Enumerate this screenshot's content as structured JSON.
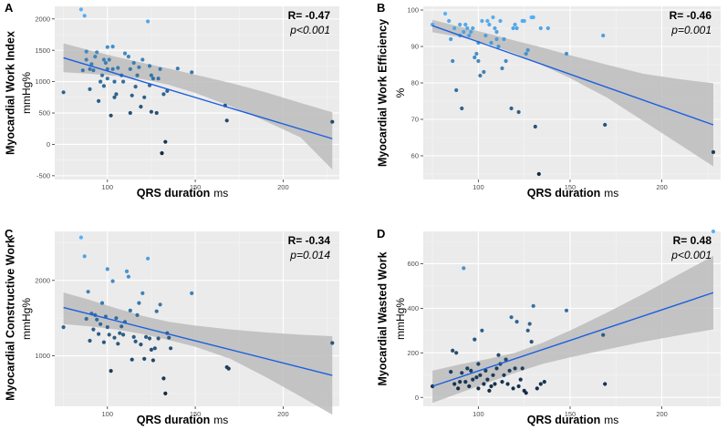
{
  "colors": {
    "panel_bg": "#ebebeb",
    "grid_major": "#ffffff",
    "grid_minor": "#f5f5f5",
    "ci_band": "#bcbcbc",
    "fit_line": "#1a5fe0",
    "point_low": "#132b43",
    "point_high": "#56b1f7"
  },
  "chart_data": [
    {
      "type": "scatter",
      "panel": "A",
      "ylabel": "Myocardial Work Index",
      "yunit": "mmHg%",
      "xlabel": "QRS duration",
      "xunit": "ms",
      "r_text": "R= -0.47",
      "p_text": "p<0.001",
      "xlim": [
        70,
        232
      ],
      "ylim": [
        -560,
        2200
      ],
      "xticks": [
        100,
        150,
        200
      ],
      "yticks": [
        -500,
        0,
        500,
        1000,
        1500,
        2000
      ],
      "xtick_labels": [
        "100",
        "150",
        "200"
      ],
      "ytick_labels": [
        "-500",
        "0",
        "500",
        "1000",
        "1500",
        "2000"
      ],
      "fit": {
        "x": [
          75,
          228
        ],
        "y": [
          1380,
          90
        ]
      },
      "ci_upper": [
        [
          75,
          1610
        ],
        [
          90,
          1500
        ],
        [
          105,
          1395
        ],
        [
          120,
          1300
        ],
        [
          135,
          1210
        ],
        [
          150,
          1110
        ],
        [
          170,
          980
        ],
        [
          190,
          830
        ],
        [
          210,
          660
        ],
        [
          228,
          510
        ]
      ],
      "ci_lower": [
        [
          75,
          1150
        ],
        [
          90,
          1125
        ],
        [
          105,
          1090
        ],
        [
          120,
          1040
        ],
        [
          135,
          950
        ],
        [
          150,
          820
        ],
        [
          170,
          610
        ],
        [
          190,
          370
        ],
        [
          210,
          110
        ],
        [
          228,
          -400
        ]
      ],
      "points": [
        [
          75,
          830
        ],
        [
          85,
          2150
        ],
        [
          87,
          2050
        ],
        [
          86,
          1180
        ],
        [
          88,
          1350
        ],
        [
          88,
          1480
        ],
        [
          90,
          1200
        ],
        [
          90,
          880
        ],
        [
          91,
          1280
        ],
        [
          92,
          1180
        ],
        [
          93,
          1400
        ],
        [
          94,
          1470
        ],
        [
          95,
          690
        ],
        [
          96,
          1000
        ],
        [
          97,
          1100
        ],
        [
          98,
          1350
        ],
        [
          98,
          930
        ],
        [
          99,
          1300
        ],
        [
          100,
          1550
        ],
        [
          100,
          1200
        ],
        [
          100,
          1050
        ],
        [
          101,
          1350
        ],
        [
          102,
          460
        ],
        [
          103,
          1560
        ],
        [
          103,
          1200
        ],
        [
          104,
          1000
        ],
        [
          104,
          750
        ],
        [
          105,
          800
        ],
        [
          106,
          1220
        ],
        [
          108,
          1100
        ],
        [
          109,
          1000
        ],
        [
          110,
          1450
        ],
        [
          112,
          1400
        ],
        [
          113,
          1200
        ],
        [
          113,
          500
        ],
        [
          114,
          780
        ],
        [
          115,
          1300
        ],
        [
          116,
          920
        ],
        [
          117,
          1100
        ],
        [
          118,
          1230
        ],
        [
          119,
          600
        ],
        [
          120,
          1350
        ],
        [
          121,
          750
        ],
        [
          123,
          1960
        ],
        [
          124,
          1250
        ],
        [
          124,
          940
        ],
        [
          125,
          1100
        ],
        [
          125,
          520
        ],
        [
          126,
          1050
        ],
        [
          128,
          500
        ],
        [
          129,
          1050
        ],
        [
          130,
          1200
        ],
        [
          131,
          -140
        ],
        [
          132,
          800
        ],
        [
          133,
          40
        ],
        [
          134,
          850
        ],
        [
          140,
          1210
        ],
        [
          148,
          1150
        ],
        [
          167,
          620
        ],
        [
          168,
          380
        ],
        [
          228,
          360
        ]
      ]
    },
    {
      "type": "scatter",
      "panel": "B",
      "ylabel": "Myocardial Work Efficiency",
      "yunit": "%",
      "xlabel": "QRS duration",
      "xunit": "ms",
      "r_text": "R= -0.46",
      "p_text": "p=0.001",
      "xlim": [
        70,
        232
      ],
      "ylim": [
        53.5,
        101
      ],
      "xticks": [
        100,
        150,
        200
      ],
      "yticks": [
        60,
        70,
        80,
        90,
        100
      ],
      "xtick_labels": [
        "100",
        "150",
        "200"
      ],
      "ytick_labels": [
        "60",
        "70",
        "80",
        "90",
        "100"
      ],
      "fit": {
        "x": [
          75,
          228
        ],
        "y": [
          95.7,
          68.5
        ]
      },
      "ci_upper": [
        [
          75,
          97.3
        ],
        [
          90,
          95.4
        ],
        [
          105,
          93.6
        ],
        [
          120,
          91.6
        ],
        [
          135,
          89.7
        ],
        [
          150,
          87.6
        ],
        [
          170,
          85.0
        ],
        [
          190,
          82.5
        ],
        [
          210,
          81.0
        ],
        [
          228,
          79.9
        ]
      ],
      "ci_lower": [
        [
          75,
          93.9
        ],
        [
          90,
          92.6
        ],
        [
          105,
          90.7
        ],
        [
          120,
          88.1
        ],
        [
          135,
          84.8
        ],
        [
          150,
          81.3
        ],
        [
          170,
          76.0
        ],
        [
          190,
          69.5
        ],
        [
          210,
          63.0
        ],
        [
          228,
          57.1
        ]
      ],
      "points": [
        [
          75,
          96
        ],
        [
          82,
          99
        ],
        [
          84,
          97
        ],
        [
          85,
          92
        ],
        [
          86,
          86
        ],
        [
          87,
          95
        ],
        [
          88,
          78
        ],
        [
          90,
          96
        ],
        [
          90,
          93
        ],
        [
          91,
          73
        ],
        [
          92,
          94
        ],
        [
          93,
          96
        ],
        [
          94,
          95
        ],
        [
          95,
          93
        ],
        [
          96,
          94
        ],
        [
          97,
          95
        ],
        [
          98,
          87
        ],
        [
          99,
          88
        ],
        [
          100,
          91
        ],
        [
          100,
          86
        ],
        [
          101,
          82
        ],
        [
          102,
          97
        ],
        [
          103,
          83
        ],
        [
          104,
          93
        ],
        [
          105,
          97
        ],
        [
          106,
          96
        ],
        [
          107,
          91
        ],
        [
          108,
          98
        ],
        [
          109,
          95
        ],
        [
          110,
          92
        ],
        [
          110,
          94
        ],
        [
          111,
          90
        ],
        [
          112,
          97
        ],
        [
          113,
          84
        ],
        [
          114,
          92
        ],
        [
          115,
          86
        ],
        [
          118,
          73
        ],
        [
          119,
          95
        ],
        [
          120,
          96
        ],
        [
          121,
          95
        ],
        [
          122,
          72
        ],
        [
          124,
          97
        ],
        [
          125,
          97
        ],
        [
          126,
          88
        ],
        [
          127,
          89
        ],
        [
          129,
          98
        ],
        [
          130,
          98
        ],
        [
          131,
          68
        ],
        [
          133,
          55
        ],
        [
          134,
          95
        ],
        [
          138,
          95
        ],
        [
          148,
          88
        ],
        [
          168,
          93
        ],
        [
          169,
          68.5
        ],
        [
          228,
          61
        ]
      ]
    },
    {
      "type": "scatter",
      "panel": "C",
      "ylabel": "Myocardial Constructive Work",
      "yunit": "mmHg%",
      "xlabel": "QRS duration",
      "xunit": "ms",
      "r_text": "R= -0.34",
      "p_text": "p=0.014",
      "xlim": [
        70,
        232
      ],
      "ylim": [
        330,
        2650
      ],
      "xticks": [
        100,
        150,
        200
      ],
      "yticks": [
        1000,
        2000
      ],
      "xtick_labels": [
        "100",
        "150",
        "200"
      ],
      "ytick_labels": [
        "1000",
        "2000"
      ],
      "fit": {
        "x": [
          75,
          228
        ],
        "y": [
          1640,
          740
        ]
      },
      "ci_upper": [
        [
          75,
          1840
        ],
        [
          90,
          1740
        ],
        [
          105,
          1630
        ],
        [
          120,
          1530
        ],
        [
          135,
          1450
        ],
        [
          150,
          1400
        ],
        [
          170,
          1350
        ],
        [
          190,
          1310
        ],
        [
          210,
          1280
        ],
        [
          228,
          1260
        ]
      ],
      "ci_lower": [
        [
          75,
          1420
        ],
        [
          90,
          1390
        ],
        [
          105,
          1350
        ],
        [
          120,
          1290
        ],
        [
          135,
          1210
        ],
        [
          150,
          1120
        ],
        [
          170,
          960
        ],
        [
          190,
          720
        ],
        [
          210,
          460
        ],
        [
          228,
          220
        ]
      ],
      "points": [
        [
          75,
          1380
        ],
        [
          85,
          2570
        ],
        [
          87,
          2320
        ],
        [
          88,
          1490
        ],
        [
          89,
          1850
        ],
        [
          90,
          1200
        ],
        [
          91,
          1560
        ],
        [
          92,
          1350
        ],
        [
          93,
          1540
        ],
        [
          94,
          1480
        ],
        [
          95,
          1290
        ],
        [
          96,
          1420
        ],
        [
          97,
          1700
        ],
        [
          98,
          1180
        ],
        [
          99,
          1520
        ],
        [
          100,
          2150
        ],
        [
          100,
          1380
        ],
        [
          101,
          1280
        ],
        [
          102,
          800
        ],
        [
          103,
          1990
        ],
        [
          104,
          1240
        ],
        [
          105,
          1500
        ],
        [
          106,
          1160
        ],
        [
          107,
          1300
        ],
        [
          108,
          1390
        ],
        [
          109,
          1280
        ],
        [
          110,
          1450
        ],
        [
          111,
          2120
        ],
        [
          112,
          2050
        ],
        [
          113,
          1600
        ],
        [
          114,
          950
        ],
        [
          115,
          1250
        ],
        [
          116,
          1190
        ],
        [
          117,
          1540
        ],
        [
          118,
          1700
        ],
        [
          119,
          1150
        ],
        [
          120,
          1830
        ],
        [
          121,
          960
        ],
        [
          122,
          1250
        ],
        [
          123,
          2290
        ],
        [
          124,
          1230
        ],
        [
          125,
          1080
        ],
        [
          126,
          940
        ],
        [
          127,
          1100
        ],
        [
          128,
          1590
        ],
        [
          129,
          1230
        ],
        [
          130,
          1680
        ],
        [
          132,
          700
        ],
        [
          133,
          500
        ],
        [
          134,
          1300
        ],
        [
          135,
          1240
        ],
        [
          136,
          1100
        ],
        [
          148,
          1830
        ],
        [
          168,
          850
        ],
        [
          169,
          830
        ],
        [
          228,
          1170
        ]
      ]
    },
    {
      "type": "scatter",
      "panel": "D",
      "ylabel": "Myocardial Wasted Work",
      "yunit": "mmHg%",
      "xlabel": "QRS duration",
      "xunit": "ms",
      "r_text": "R= 0.48",
      "p_text": "p<0.001",
      "xlim": [
        70,
        232
      ],
      "ylim": [
        -40,
        745
      ],
      "xticks": [
        100,
        150,
        200
      ],
      "yticks": [
        0,
        200,
        400,
        600
      ],
      "xtick_labels": [
        "100",
        "150",
        "200"
      ],
      "ytick_labels": [
        "0",
        "200",
        "400",
        "600"
      ],
      "fit": {
        "x": [
          75,
          228
        ],
        "y": [
          50,
          470
        ]
      },
      "ci_upper": [
        [
          75,
          120
        ],
        [
          90,
          148
        ],
        [
          105,
          172
        ],
        [
          120,
          200
        ],
        [
          135,
          245
        ],
        [
          150,
          300
        ],
        [
          170,
          380
        ],
        [
          190,
          465
        ],
        [
          210,
          555
        ],
        [
          228,
          635
        ]
      ],
      "ci_lower": [
        [
          75,
          -25
        ],
        [
          90,
          20
        ],
        [
          105,
          65
        ],
        [
          120,
          110
        ],
        [
          135,
          150
        ],
        [
          150,
          180
        ],
        [
          170,
          215
        ],
        [
          190,
          250
        ],
        [
          210,
          280
        ],
        [
          228,
          305
        ]
      ],
      "points": [
        [
          75,
          50
        ],
        [
          85,
          115
        ],
        [
          86,
          210
        ],
        [
          87,
          60
        ],
        [
          88,
          200
        ],
        [
          89,
          40
        ],
        [
          90,
          70
        ],
        [
          91,
          110
        ],
        [
          92,
          580
        ],
        [
          93,
          70
        ],
        [
          94,
          130
        ],
        [
          95,
          50
        ],
        [
          96,
          120
        ],
        [
          97,
          80
        ],
        [
          98,
          260
        ],
        [
          99,
          90
        ],
        [
          100,
          150
        ],
        [
          100,
          40
        ],
        [
          101,
          100
        ],
        [
          102,
          300
        ],
        [
          103,
          60
        ],
        [
          104,
          120
        ],
        [
          105,
          80
        ],
        [
          106,
          30
        ],
        [
          107,
          50
        ],
        [
          108,
          100
        ],
        [
          109,
          60
        ],
        [
          110,
          130
        ],
        [
          111,
          190
        ],
        [
          112,
          150
        ],
        [
          113,
          70
        ],
        [
          114,
          100
        ],
        [
          115,
          170
        ],
        [
          116,
          60
        ],
        [
          117,
          120
        ],
        [
          118,
          360
        ],
        [
          119,
          40
        ],
        [
          120,
          130
        ],
        [
          121,
          340
        ],
        [
          122,
          50
        ],
        [
          123,
          80
        ],
        [
          124,
          130
        ],
        [
          125,
          30
        ],
        [
          126,
          20
        ],
        [
          127,
          300
        ],
        [
          128,
          330
        ],
        [
          129,
          250
        ],
        [
          130,
          410
        ],
        [
          132,
          40
        ],
        [
          134,
          60
        ],
        [
          136,
          70
        ],
        [
          148,
          390
        ],
        [
          168,
          280
        ],
        [
          169,
          60
        ],
        [
          228,
          745
        ]
      ]
    }
  ]
}
